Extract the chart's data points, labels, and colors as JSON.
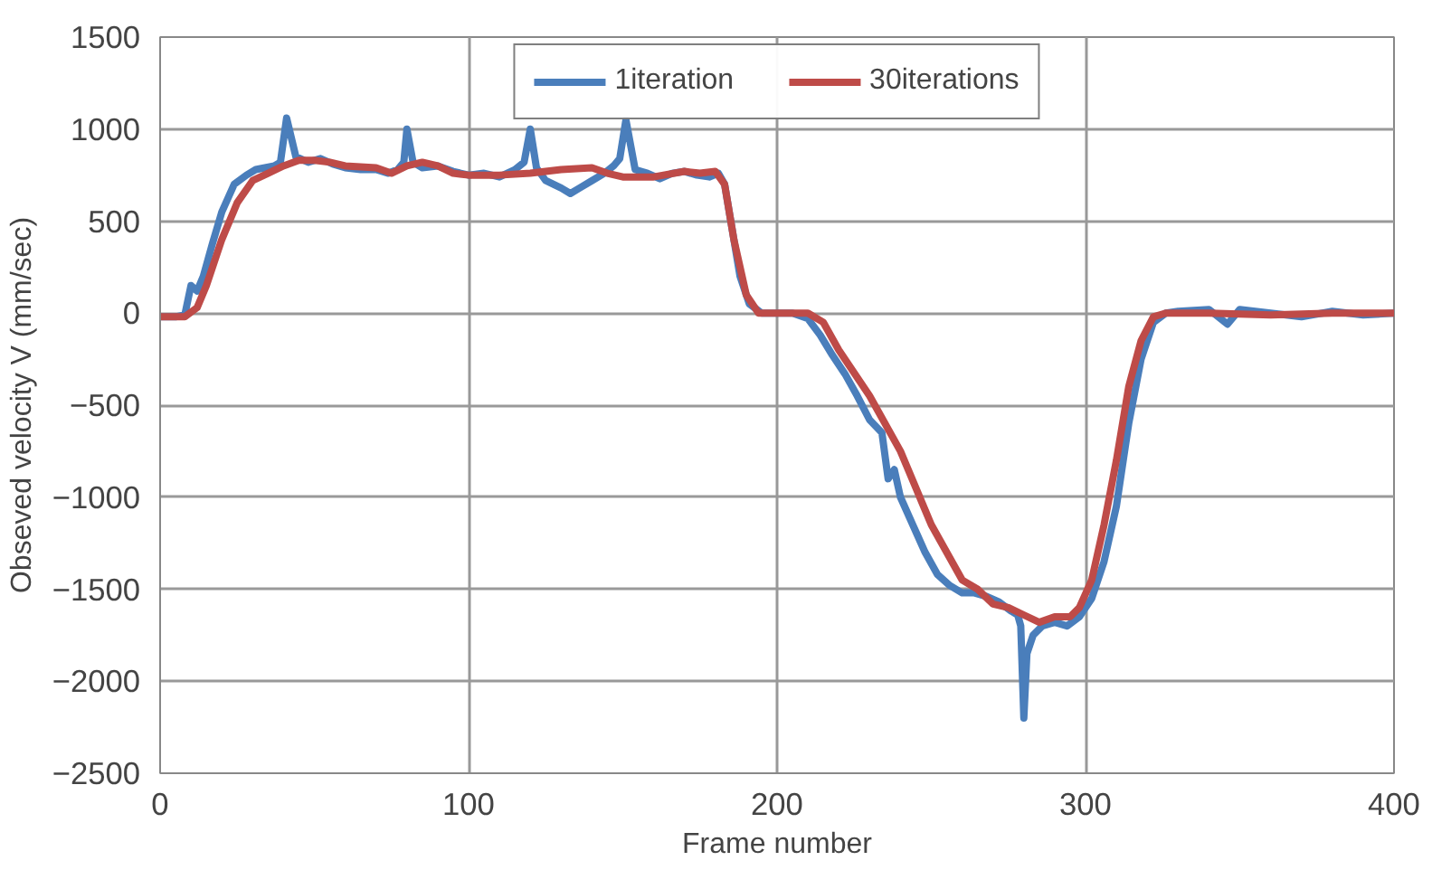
{
  "chart_data": {
    "type": "line",
    "xlabel": "Frame number",
    "ylabel": "Obseved velocity V (mm/sec)",
    "xlim": [
      0,
      400
    ],
    "ylim": [
      -2500,
      1500
    ],
    "xticks": [
      0,
      100,
      200,
      300,
      400
    ],
    "yticks": [
      -2500,
      -2000,
      -1500,
      -1000,
      -500,
      0,
      500,
      1000,
      1500
    ],
    "grid": true,
    "legend": "top",
    "marker": "none",
    "line_style": "solid",
    "series": [
      {
        "name": "1iteration",
        "color": "#4a7ebb",
        "x": [
          0,
          5,
          8,
          10,
          12,
          14,
          17,
          20,
          24,
          28,
          31,
          34,
          37,
          39,
          41,
          44,
          48,
          52,
          56,
          60,
          65,
          70,
          74,
          77,
          79,
          80,
          82,
          85,
          90,
          95,
          100,
          105,
          110,
          115,
          118,
          120,
          122,
          125,
          130,
          133,
          136,
          140,
          144,
          147,
          149,
          151,
          154,
          158,
          162,
          166,
          170,
          174,
          178,
          181,
          183,
          185,
          188,
          191,
          195,
          200,
          205,
          210,
          214,
          218,
          222,
          226,
          230,
          234,
          236,
          238,
          240,
          244,
          248,
          252,
          256,
          260,
          264,
          268,
          272,
          276,
          278,
          279,
          280,
          281,
          283,
          286,
          290,
          294,
          298,
          302,
          306,
          310,
          314,
          318,
          322,
          326,
          330,
          340,
          346,
          350,
          360,
          370,
          380,
          390,
          400
        ],
        "values": [
          -20,
          -20,
          -10,
          150,
          120,
          200,
          380,
          550,
          700,
          750,
          780,
          790,
          800,
          820,
          1060,
          850,
          820,
          840,
          810,
          790,
          780,
          780,
          760,
          780,
          820,
          1000,
          820,
          790,
          800,
          770,
          750,
          760,
          740,
          780,
          820,
          1000,
          790,
          720,
          680,
          650,
          680,
          720,
          760,
          800,
          840,
          1050,
          780,
          760,
          730,
          760,
          770,
          750,
          740,
          760,
          700,
          500,
          200,
          50,
          0,
          0,
          0,
          -30,
          -120,
          -230,
          -330,
          -450,
          -580,
          -650,
          -900,
          -850,
          -1000,
          -1150,
          -1300,
          -1420,
          -1480,
          -1520,
          -1520,
          -1540,
          -1570,
          -1620,
          -1640,
          -1700,
          -2200,
          -1850,
          -1750,
          -1700,
          -1680,
          -1700,
          -1650,
          -1550,
          -1350,
          -1050,
          -600,
          -250,
          -50,
          0,
          10,
          20,
          -60,
          20,
          0,
          -20,
          10,
          -10,
          0
        ]
      },
      {
        "name": "30iterations",
        "color": "#be4b48",
        "x": [
          0,
          8,
          12,
          15,
          20,
          25,
          30,
          35,
          40,
          45,
          50,
          55,
          60,
          70,
          75,
          80,
          85,
          90,
          95,
          100,
          110,
          120,
          130,
          140,
          145,
          150,
          160,
          170,
          175,
          180,
          183,
          186,
          190,
          194,
          200,
          210,
          215,
          220,
          230,
          240,
          245,
          250,
          255,
          260,
          265,
          270,
          275,
          280,
          285,
          290,
          295,
          298,
          302,
          306,
          310,
          314,
          318,
          322,
          326,
          340,
          360,
          380,
          400
        ],
        "values": [
          -20,
          -20,
          30,
          150,
          400,
          600,
          720,
          760,
          800,
          830,
          830,
          820,
          800,
          790,
          760,
          800,
          820,
          800,
          760,
          750,
          750,
          760,
          780,
          790,
          760,
          740,
          740,
          770,
          760,
          770,
          700,
          400,
          100,
          0,
          0,
          0,
          -50,
          -200,
          -450,
          -750,
          -950,
          -1150,
          -1300,
          -1450,
          -1500,
          -1580,
          -1600,
          -1640,
          -1680,
          -1650,
          -1650,
          -1600,
          -1450,
          -1150,
          -800,
          -400,
          -150,
          -20,
          0,
          0,
          -10,
          0,
          0
        ]
      }
    ]
  }
}
